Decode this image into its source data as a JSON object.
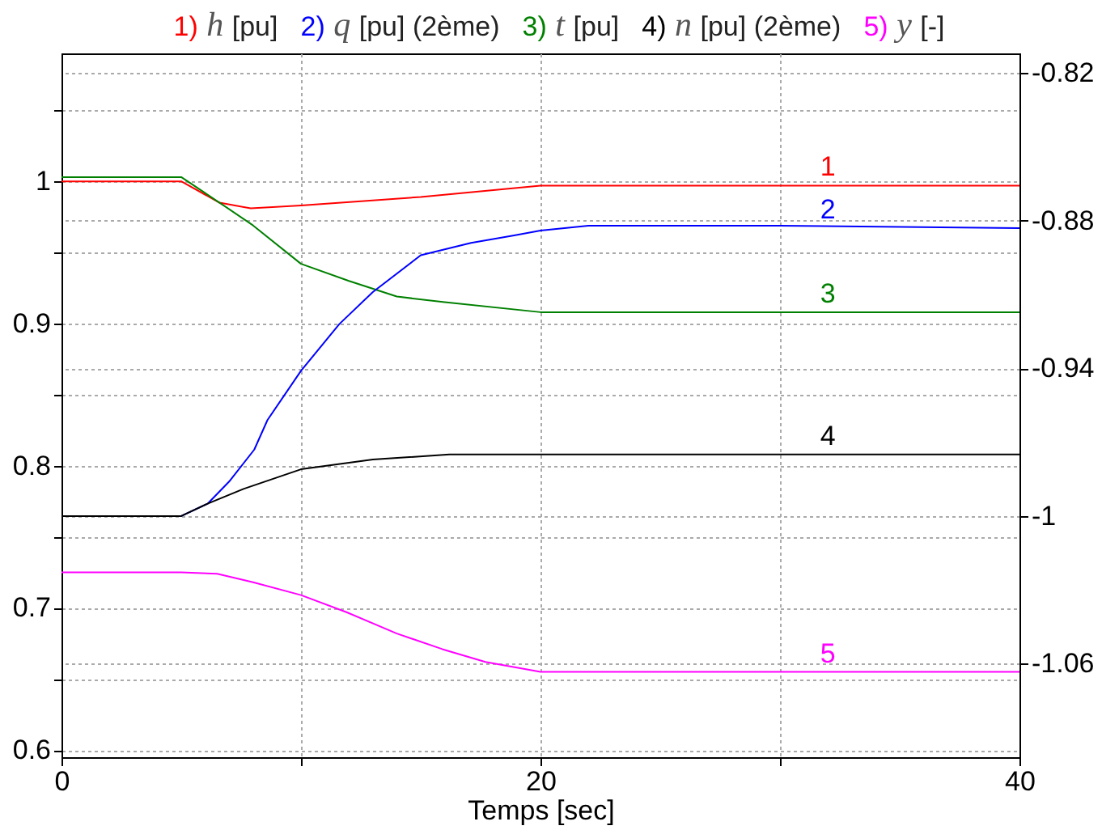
{
  "chart_data": {
    "type": "line",
    "xlabel": "Temps [sec]",
    "series": [
      {
        "name": "1) h [pu]",
        "color": "#ff0000",
        "x": [
          0,
          5,
          6.6,
          7.9,
          10,
          15,
          20,
          30,
          40
        ],
        "values": [
          1,
          1,
          0.985,
          0.981,
          0.983,
          0.989,
          0.997,
          0.997,
          0.997
        ]
      },
      {
        "name": "2) q [pu] (2ème)",
        "color": "#0000ff",
        "axis": "y2",
        "x": [
          0,
          5,
          6.1,
          7,
          8.05,
          8.6,
          10,
          11.6,
          13,
          15,
          17.1,
          18.9,
          20,
          22,
          30,
          40
        ],
        "values": [
          -1,
          -1,
          -0.995,
          -0.986,
          -0.973,
          -0.961,
          -0.941,
          -0.922,
          -0.909,
          -0.894,
          -0.889,
          -0.886,
          -0.884,
          -0.882,
          -0.882,
          -0.883
        ]
      },
      {
        "name": "3) t [pu]",
        "color": "#008000",
        "x": [
          0,
          5,
          6.6,
          8,
          10,
          12,
          14,
          16,
          20,
          30,
          40
        ],
        "values": [
          1.003,
          1.003,
          0.985,
          0.969,
          0.942,
          0.93,
          0.919,
          0.915,
          0.908,
          0.908,
          0.908
        ]
      },
      {
        "name": "4) n [pu] (2ème)",
        "color": "#000000",
        "axis": "y2",
        "x": [
          0,
          5,
          6.1,
          7.6,
          10,
          13,
          16.2,
          20,
          30,
          40
        ],
        "values": [
          -1,
          -1,
          -0.995,
          -0.989,
          -0.981,
          -0.977,
          -0.975,
          -0.975,
          -0.975,
          -0.975
        ]
      },
      {
        "name": "5) y [-]",
        "color": "#ff00ff",
        "x": [
          0,
          5,
          6.5,
          8,
          10,
          11.9,
          14,
          15.9,
          17.7,
          20,
          30,
          40
        ],
        "values": [
          0.725,
          0.725,
          0.724,
          0.718,
          0.709,
          0.697,
          0.682,
          0.671,
          0.662,
          0.655,
          0.655,
          0.655
        ]
      }
    ],
    "annotations": [
      "1",
      "2",
      "3",
      "4",
      "5"
    ],
    "xlim": [
      0,
      40
    ],
    "xticks": [
      0,
      {
        "value": 10,
        "label": null
      },
      20,
      {
        "value": 30,
        "label": null
      },
      40
    ],
    "ylim": [
      0.595,
      1.09
    ],
    "yticks": [
      0.6,
      {
        "value": 0.65,
        "label": null
      },
      0.7,
      {
        "value": 0.75,
        "label": null
      },
      0.8,
      {
        "value": 0.85,
        "label": null
      },
      0.9,
      {
        "value": 0.95,
        "label": null
      },
      1,
      {
        "value": 1.05,
        "label": null
      }
    ],
    "y2lim": [
      -1.098,
      -0.812
    ],
    "y2ticks": [
      -0.82,
      -0.88,
      -0.94,
      -1,
      -1.06
    ],
    "grid": true,
    "legend": "top",
    "line_style": "solid"
  }
}
